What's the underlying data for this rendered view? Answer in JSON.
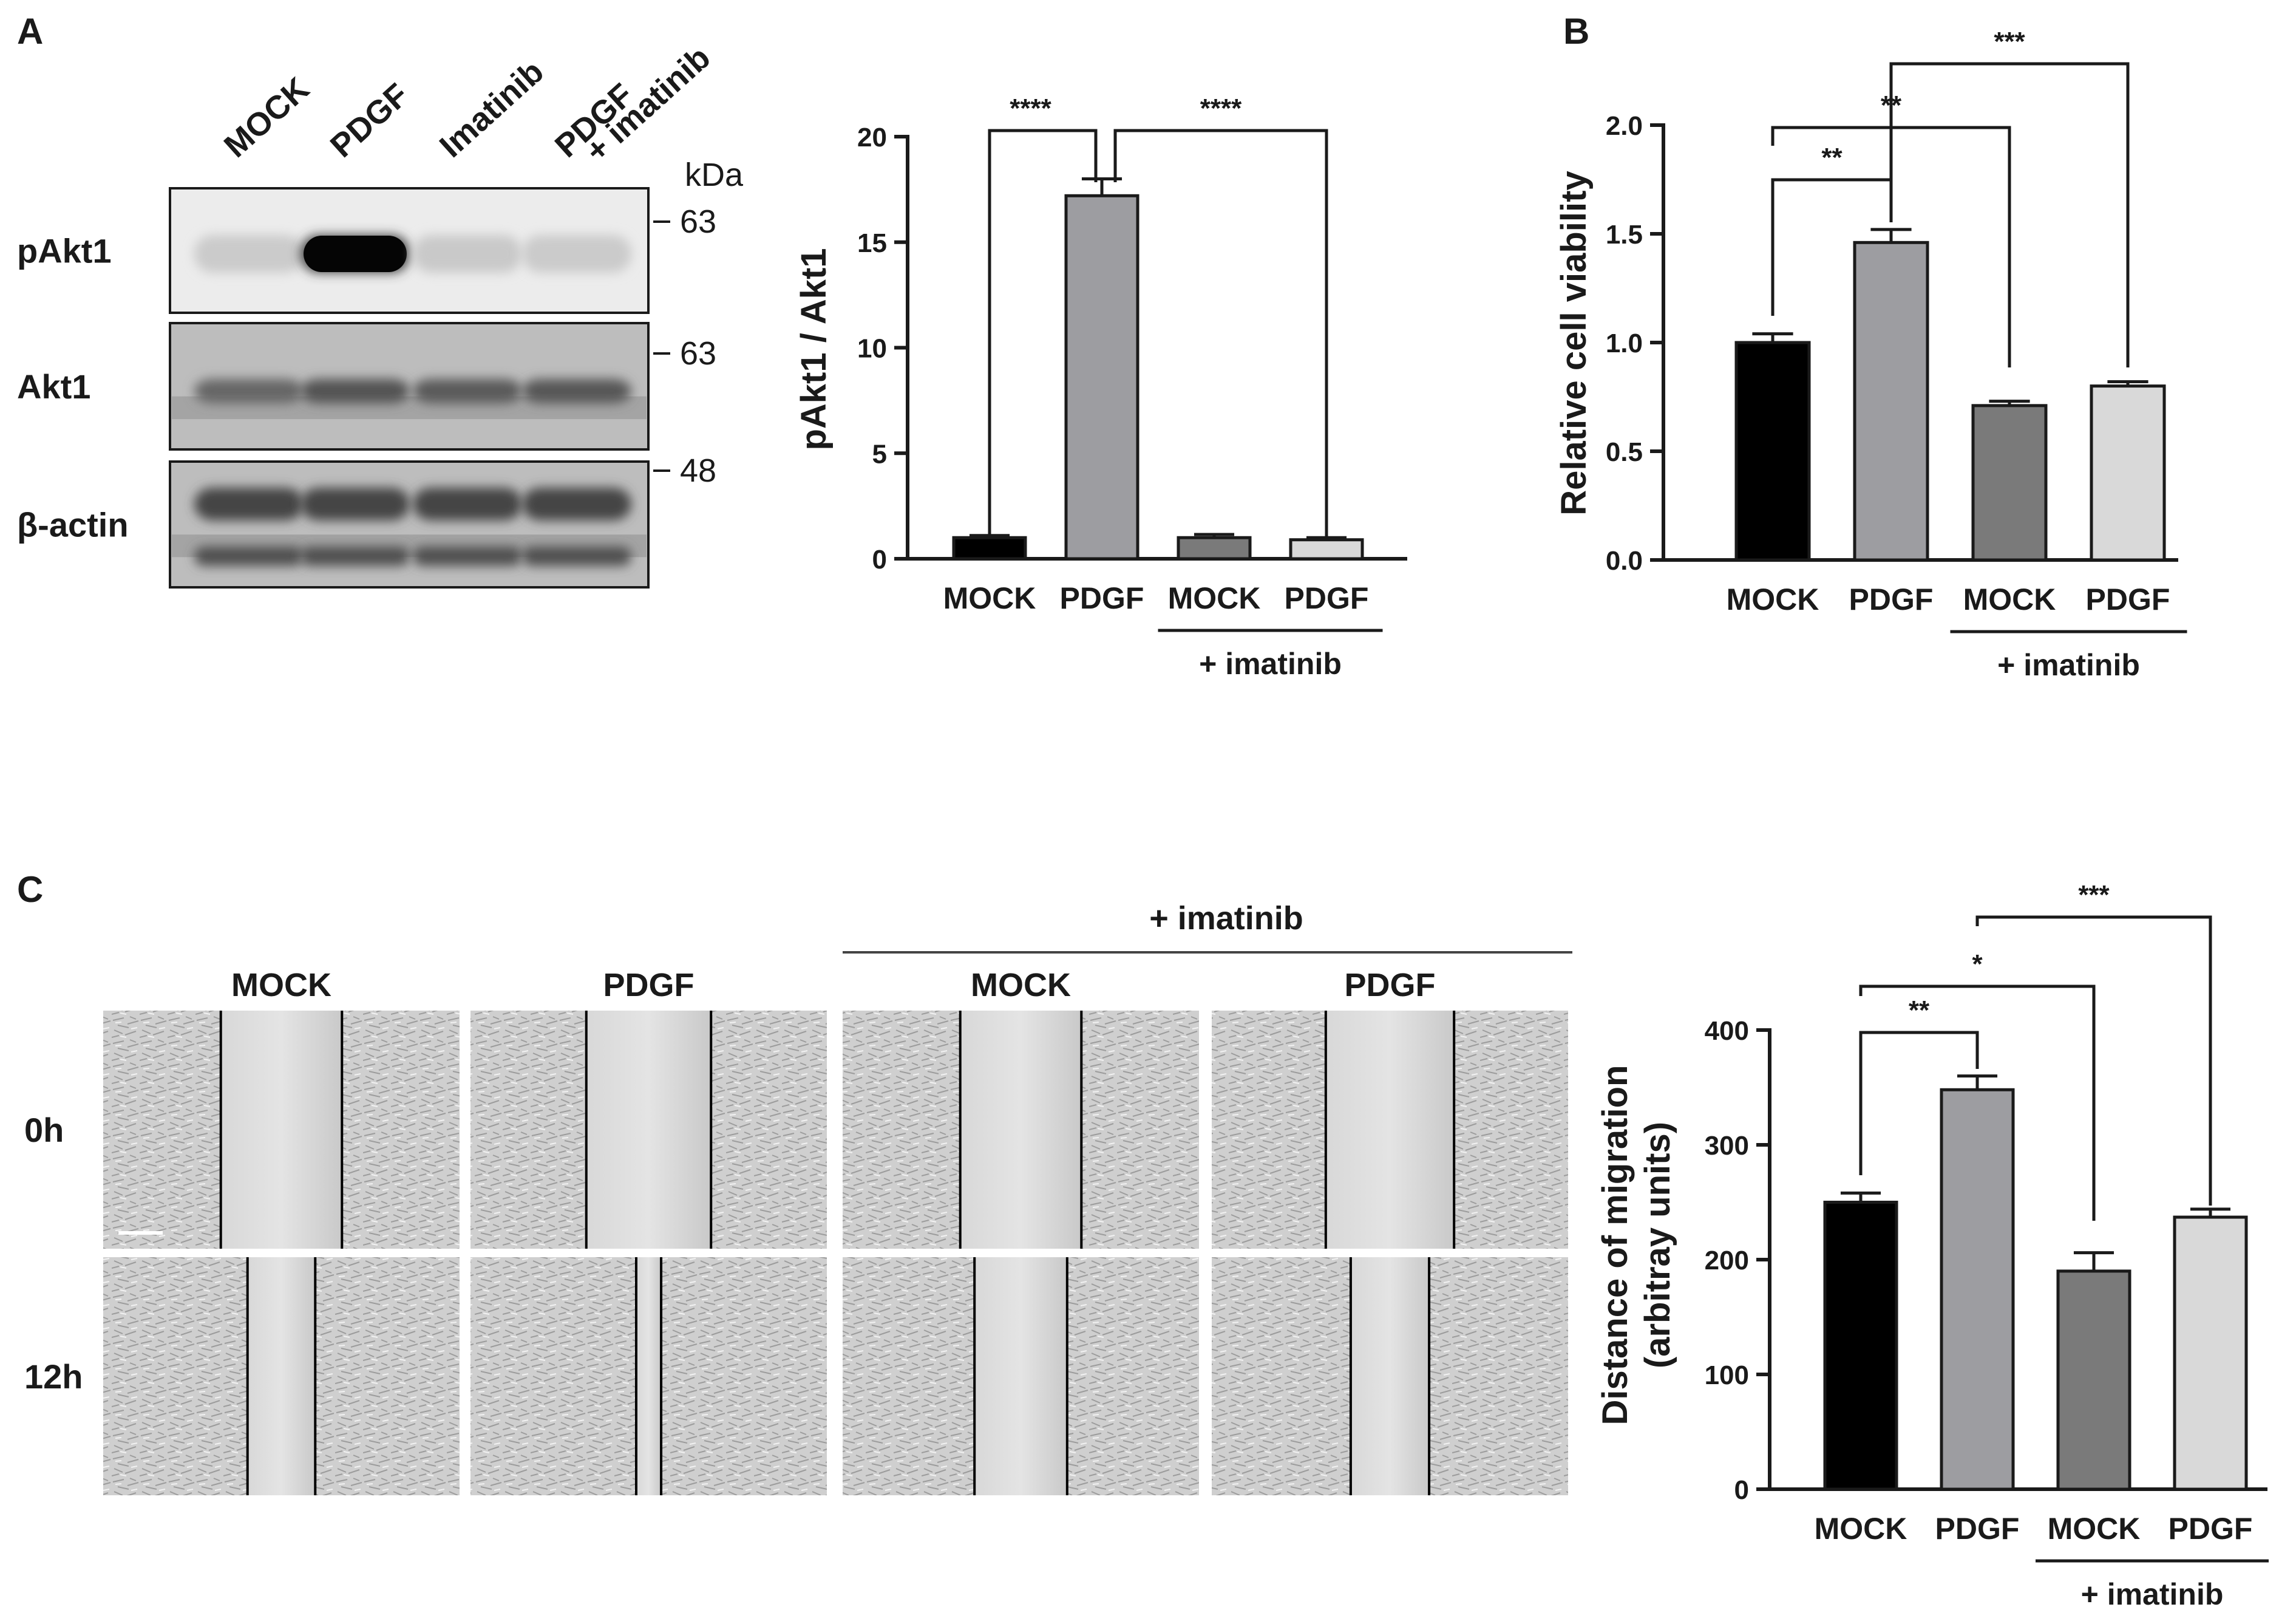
{
  "panels": {
    "A": "A",
    "B": "B",
    "C": "C"
  },
  "western_blot": {
    "lanes": [
      "MOCK",
      "PDGF",
      "Imatinib",
      "PDGF"
    ],
    "lane4_second_line": "+ imatinib",
    "kda_label": "kDa",
    "bands": [
      {
        "name": "pAkt1",
        "marker": "63",
        "intensity": [
          0.05,
          1.0,
          0.06,
          0.05
        ]
      },
      {
        "name": "Akt1",
        "marker": "63",
        "intensity": [
          0.72,
          0.85,
          0.8,
          0.82
        ]
      },
      {
        "name": "β-actin",
        "marker": "48",
        "intensity": [
          0.95,
          0.95,
          0.95,
          0.95
        ]
      }
    ]
  },
  "chart_data": [
    {
      "type": "bar",
      "id": "pakt",
      "categories": [
        "MOCK",
        "PDGF",
        "MOCK",
        "PDGF"
      ],
      "group_label": "+ imatinib",
      "ylabel": "pAkt1 / Akt1",
      "ylim": [
        0,
        20
      ],
      "yticks": [
        0,
        5,
        10,
        15,
        20
      ],
      "values": [
        1.0,
        17.2,
        1.0,
        0.9
      ],
      "errors": [
        0.1,
        0.8,
        0.15,
        0.1
      ],
      "colors": [
        "#000000",
        "#9d9da1",
        "#7a7a7a",
        "#d9d9d9"
      ],
      "significance": [
        {
          "from": 0,
          "to": 1,
          "label": "****"
        },
        {
          "from": 1,
          "to": 3,
          "label": "****"
        }
      ]
    },
    {
      "type": "bar",
      "id": "viability",
      "categories": [
        "MOCK",
        "PDGF",
        "MOCK",
        "PDGF"
      ],
      "group_label": "+ imatinib",
      "ylabel": "Relative cell viability",
      "ylim": [
        0,
        2.0
      ],
      "yticks": [
        "0.0",
        "0.5",
        "1.0",
        "1.5",
        "2.0"
      ],
      "values": [
        1.0,
        1.46,
        0.71,
        0.8
      ],
      "errors": [
        0.04,
        0.06,
        0.02,
        0.02
      ],
      "colors": [
        "#000000",
        "#9d9da1",
        "#7a7a7a",
        "#d9d9d9"
      ],
      "significance": [
        {
          "from": 0,
          "to": 1,
          "label": "**"
        },
        {
          "from": 0,
          "to": 2,
          "label": "**"
        },
        {
          "from": 1,
          "to": 3,
          "label": "***"
        }
      ]
    },
    {
      "type": "bar",
      "id": "migration",
      "categories": [
        "MOCK",
        "PDGF",
        "MOCK",
        "PDGF"
      ],
      "group_label": "+ imatinib",
      "ylabel": "Distance of migration",
      "ylabel2": "(arbitray units)",
      "ylim": [
        0,
        400
      ],
      "yticks": [
        0,
        100,
        200,
        300,
        400
      ],
      "values": [
        250,
        348,
        190,
        237
      ],
      "errors": [
        8,
        12,
        16,
        7
      ],
      "colors": [
        "#000000",
        "#9d9da1",
        "#7a7a7a",
        "#d9d9d9"
      ],
      "significance": [
        {
          "from": 0,
          "to": 1,
          "label": "**"
        },
        {
          "from": 0,
          "to": 2,
          "label": "*"
        },
        {
          "from": 1,
          "to": 3,
          "label": "***"
        }
      ]
    }
  ],
  "scratch": {
    "group_label": "+ imatinib",
    "columns": [
      "MOCK",
      "PDGF",
      "MOCK",
      "PDGF"
    ],
    "rows": [
      "0h",
      "12h"
    ],
    "gap_width": [
      [
        0.34,
        0.35,
        0.34,
        0.36
      ],
      [
        0.19,
        0.07,
        0.26,
        0.22
      ]
    ]
  }
}
